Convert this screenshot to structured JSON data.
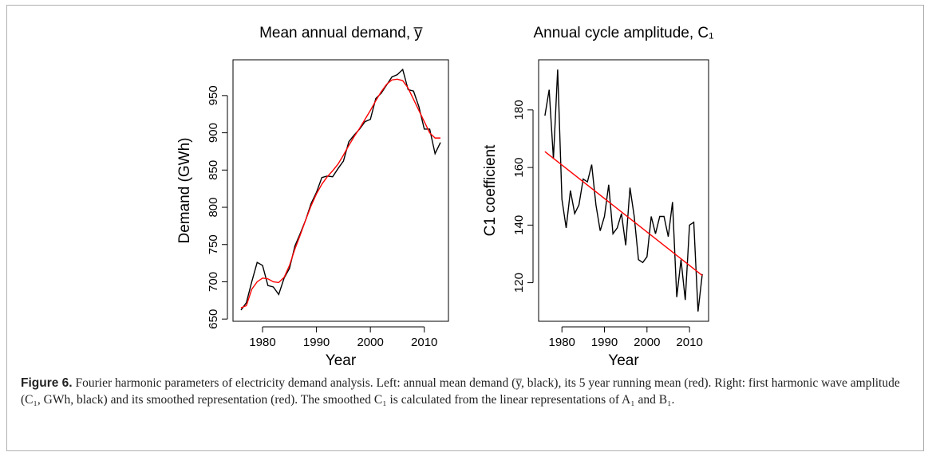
{
  "chart_data": [
    {
      "type": "line",
      "title": "Mean annual demand,  y̅",
      "xlabel": "Year",
      "ylabel": "Demand (GWh)",
      "x": [
        1976,
        1977,
        1978,
        1979,
        1980,
        1981,
        1982,
        1983,
        1984,
        1985,
        1986,
        1987,
        1988,
        1989,
        1990,
        1991,
        1992,
        1993,
        1994,
        1995,
        1996,
        1997,
        1998,
        1999,
        2000,
        2001,
        2002,
        2003,
        2004,
        2005,
        2006,
        2007,
        2008,
        2009,
        2010,
        2011,
        2012,
        2013
      ],
      "series": [
        {
          "color": "#000000",
          "values": [
            662,
            672,
            700,
            726,
            722,
            695,
            693,
            683,
            705,
            718,
            748,
            765,
            783,
            805,
            820,
            840,
            842,
            841,
            852,
            862,
            888,
            897,
            905,
            915,
            918,
            946,
            953,
            964,
            975,
            978,
            985,
            958,
            956,
            935,
            905,
            905,
            872,
            887
          ]
        },
        {
          "color": "#ff0000",
          "values": [
            665,
            668,
            690,
            700,
            705,
            704,
            700,
            699,
            706,
            722,
            744,
            763,
            783,
            802,
            818,
            831,
            841,
            849,
            858,
            870,
            883,
            895,
            906,
            918,
            930,
            943,
            955,
            965,
            971,
            972,
            970,
            960,
            945,
            930,
            915,
            900,
            893,
            893
          ]
        }
      ],
      "xlim": [
        1974.52,
        2014.48
      ],
      "xticks": [
        1980,
        1990,
        2000,
        2010
      ],
      "ylim": [
        647,
        998
      ],
      "yticks": [
        650,
        700,
        750,
        800,
        850,
        900,
        950
      ]
    },
    {
      "type": "line",
      "title": "Annual cycle amplitude,  C₁",
      "xlabel": "Year",
      "ylabel": "C1 coefficient",
      "x": [
        1976,
        1977,
        1978,
        1979,
        1980,
        1981,
        1982,
        1983,
        1984,
        1985,
        1986,
        1987,
        1988,
        1989,
        1990,
        1991,
        1992,
        1993,
        1994,
        1995,
        1996,
        1997,
        1998,
        1999,
        2000,
        2001,
        2002,
        2003,
        2004,
        2005,
        2006,
        2007,
        2008,
        2009,
        2010,
        2011,
        2012,
        2013
      ],
      "series": [
        {
          "color": "#000000",
          "values": [
            178,
            187,
            163,
            194,
            149,
            139,
            152,
            144,
            147,
            156,
            155,
            161,
            147,
            138,
            143,
            154,
            137,
            139,
            144,
            133,
            153,
            143,
            128,
            127,
            129,
            143,
            137,
            143,
            143,
            136,
            148,
            115,
            128,
            114,
            140,
            141,
            110,
            123
          ]
        },
        {
          "color": "#ff0000",
          "x": [
            1976,
            2013
          ],
          "values": [
            165.5,
            122.5
          ]
        }
      ],
      "xlim": [
        1974.52,
        2014.48
      ],
      "xticks": [
        1980,
        1990,
        2000,
        2010
      ],
      "ylim": [
        106.6,
        197.4
      ],
      "yticks": [
        120,
        140,
        160,
        180
      ]
    }
  ],
  "caption": {
    "label": "Figure 6.",
    "text": "Fourier harmonic parameters of electricity demand analysis. Left: annual mean demand (y̅, black), its 5 year running mean (red). Right: first harmonic wave amplitude (C₁, GWh, black) and its smoothed representation (red). The smoothed C₁ is calculated from the linear representations of A₁ and B₁."
  }
}
